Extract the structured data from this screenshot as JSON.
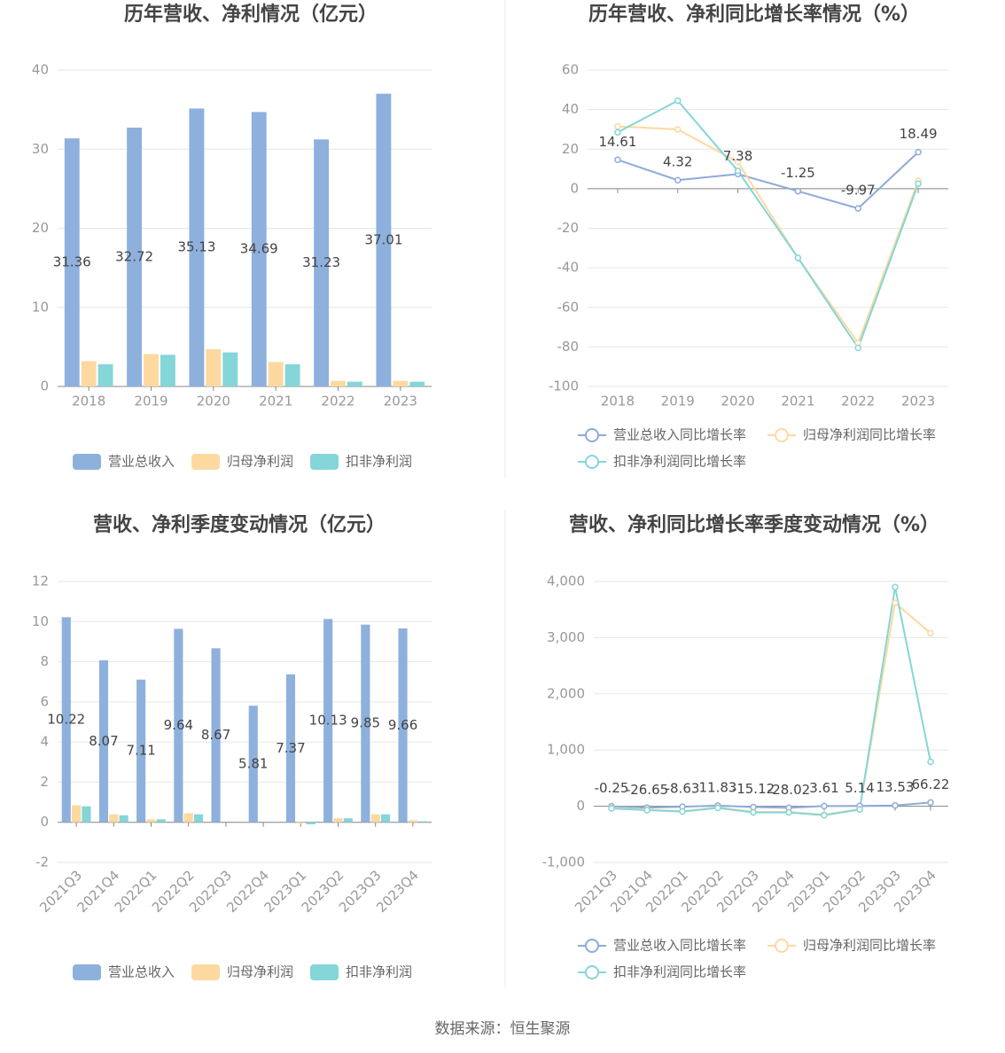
{
  "chart_data": [
    {
      "type": "bar",
      "title": "历年营收、净利情况（亿元）",
      "categories": [
        "2018",
        "2019",
        "2020",
        "2021",
        "2022",
        "2023"
      ],
      "series": [
        {
          "name": "营业总收入",
          "color": "#8eb0dd",
          "data_labels": true,
          "values": [
            31.36,
            32.72,
            35.13,
            34.69,
            31.23,
            37.01
          ]
        },
        {
          "name": "归母净利润",
          "color": "#fdd9a0",
          "values": [
            3.2,
            4.1,
            4.7,
            3.1,
            0.7,
            0.7
          ]
        },
        {
          "name": "扣非净利润",
          "color": "#84d6d8",
          "values": [
            2.8,
            4.0,
            4.3,
            2.8,
            0.6,
            0.6
          ]
        }
      ],
      "ylim": [
        0,
        40
      ],
      "yticks": [
        0,
        10,
        20,
        30,
        40
      ],
      "grid": true,
      "legend": "bottom"
    },
    {
      "type": "line",
      "title": "历年营收、净利同比增长率情况（%）",
      "categories": [
        "2018",
        "2019",
        "2020",
        "2021",
        "2022",
        "2023"
      ],
      "series": [
        {
          "name": "营业总收入同比增长率",
          "color": "#8eaadb",
          "data_labels": true,
          "values": [
            14.61,
            4.32,
            7.38,
            -1.25,
            -9.97,
            18.49
          ]
        },
        {
          "name": "归母净利润同比增长率",
          "color": "#fdd9a0",
          "values": [
            31.5,
            30.0,
            13.5,
            -35,
            -78,
            4
          ]
        },
        {
          "name": "扣非净利润同比增长率",
          "color": "#84d6d8",
          "values": [
            28.5,
            44.5,
            9,
            -35,
            -80.5,
            2.5
          ]
        }
      ],
      "ylim": [
        -100,
        60
      ],
      "yticks": [
        -100,
        -80,
        -60,
        -40,
        -20,
        0,
        20,
        40,
        60
      ],
      "grid": true,
      "legend": "bottom"
    },
    {
      "type": "bar",
      "title": "营收、净利季度变动情况（亿元）",
      "categories": [
        "2021Q3",
        "2021Q4",
        "2022Q1",
        "2022Q2",
        "2022Q3",
        "2022Q4",
        "2023Q1",
        "2023Q2",
        "2023Q3",
        "2023Q4"
      ],
      "series": [
        {
          "name": "营业总收入",
          "color": "#8eb0dd",
          "data_labels": true,
          "values": [
            10.22,
            8.07,
            7.11,
            9.64,
            8.67,
            5.81,
            7.37,
            10.13,
            9.85,
            9.66
          ]
        },
        {
          "name": "归母净利润",
          "color": "#fdd9a0",
          "values": [
            0.85,
            0.4,
            0.15,
            0.45,
            0.0,
            0.0,
            -0.05,
            0.2,
            0.4,
            0.1
          ]
        },
        {
          "name": "扣非净利润",
          "color": "#84d6d8",
          "values": [
            0.8,
            0.35,
            0.15,
            0.4,
            0.0,
            0.0,
            -0.1,
            0.2,
            0.4,
            0.05
          ]
        }
      ],
      "ylim": [
        -2,
        12
      ],
      "yticks": [
        -2,
        0,
        2,
        4,
        6,
        8,
        10,
        12
      ],
      "grid": true,
      "legend": "bottom"
    },
    {
      "type": "line",
      "title": "营收、净利同比增长率季度变动情况（%）",
      "categories": [
        "2021Q3",
        "2021Q4",
        "2022Q1",
        "2022Q2",
        "2022Q3",
        "2022Q4",
        "2023Q1",
        "2023Q2",
        "2023Q3",
        "2023Q4"
      ],
      "series": [
        {
          "name": "营业总收入同比增长率",
          "color": "#8eaadb",
          "data_labels": true,
          "values": [
            -0.25,
            -26.65,
            -8.63,
            11.83,
            -15.12,
            -28.02,
            3.61,
            5.14,
            13.53,
            66.22
          ]
        },
        {
          "name": "归母净利润同比增长率",
          "color": "#fdd9a0",
          "values": [
            -30,
            -60,
            -90,
            -20,
            -100,
            -100,
            -150,
            -50,
            3620,
            3080
          ]
        },
        {
          "name": "扣非净利润同比增长率",
          "color": "#84d6d8",
          "values": [
            -40,
            -70,
            -95,
            -30,
            -110,
            -110,
            -160,
            -60,
            3900,
            790
          ]
        }
      ],
      "ylim": [
        -1000,
        4000
      ],
      "yticks": [
        {
          "value": -1000,
          "label": "-1,000"
        },
        0,
        {
          "value": 1000,
          "label": "1,000"
        },
        {
          "value": 2000,
          "label": "2,000"
        },
        {
          "value": 3000,
          "label": "3,000"
        },
        {
          "value": 4000,
          "label": "4,000"
        }
      ],
      "grid": true,
      "legend": "bottom"
    }
  ],
  "footer": "数据来源：恒生聚源"
}
